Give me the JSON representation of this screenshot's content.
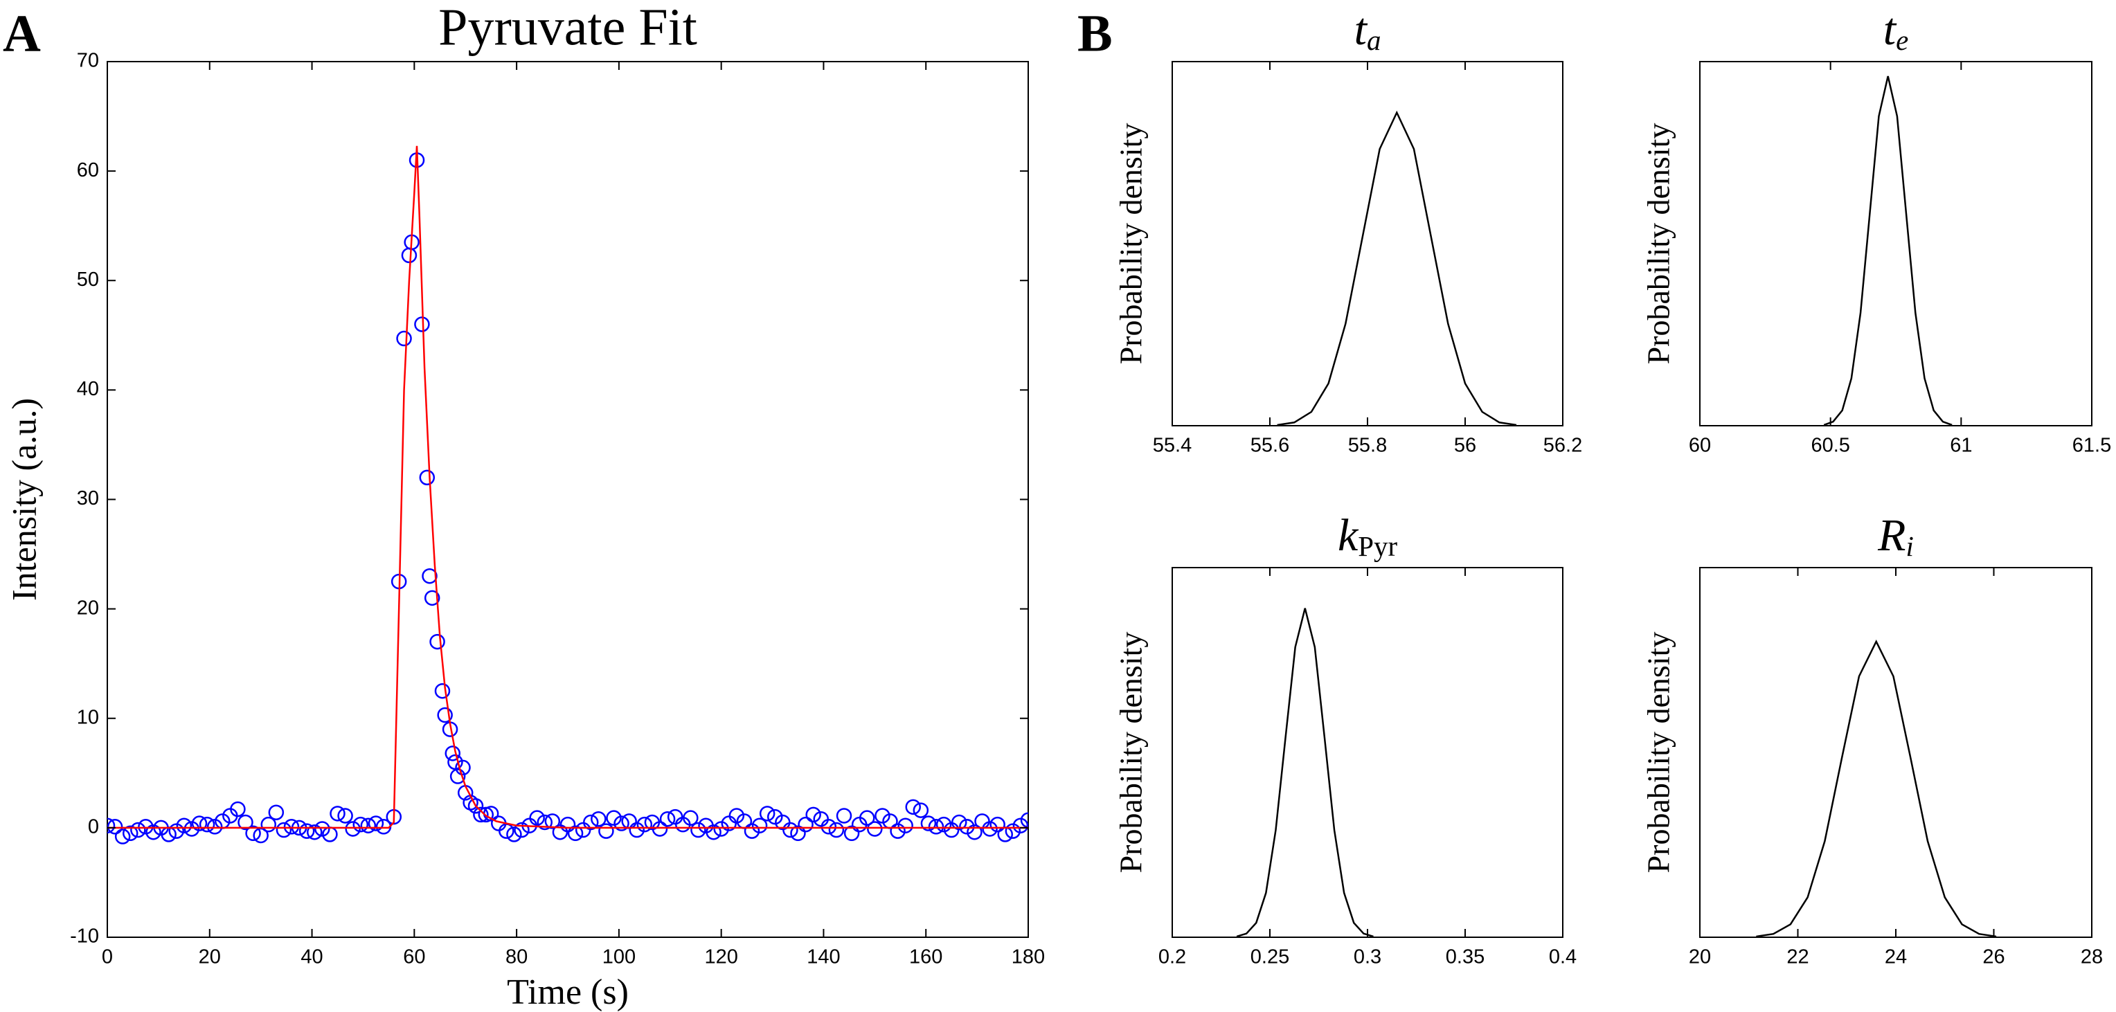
{
  "panel_labels": [
    "A",
    "B"
  ],
  "chart_data": [
    {
      "type": "scatter",
      "title": "Pyruvate Fit",
      "xlabel": "Time (s)",
      "ylabel": "Intensity (a.u.)",
      "xlim": [
        0,
        180
      ],
      "xticks": [
        0,
        20,
        40,
        60,
        80,
        100,
        120,
        140,
        160,
        180
      ],
      "ylim": [
        -10,
        70
      ],
      "yticks": [
        -10,
        0,
        10,
        20,
        30,
        40,
        50,
        60,
        70
      ],
      "series": [
        {
          "type": "scatter",
          "color": "#0000ff",
          "x": [
            0,
            1.5,
            3,
            4.5,
            6,
            7.5,
            9,
            10.5,
            12,
            13.5,
            15,
            16.5,
            18,
            19.5,
            21,
            22.5,
            24,
            25.5,
            27,
            28.5,
            30,
            31.5,
            33,
            34.5,
            36,
            37.5,
            39,
            40.5,
            42,
            43.5,
            45,
            46.5,
            48,
            49.5,
            51,
            52.5,
            54,
            56,
            57,
            58,
            59,
            59.5,
            60.5,
            61.5,
            62.5,
            63,
            63.5,
            64.5,
            65.5,
            66,
            67,
            67.5,
            68,
            68.5,
            69.5,
            70,
            71,
            72,
            73,
            74,
            75,
            76.5,
            78,
            79.5,
            81,
            82.5,
            84,
            85.5,
            87,
            88.5,
            90,
            91.5,
            93,
            94.5,
            96,
            97.5,
            99,
            100.5,
            102,
            103.5,
            105,
            106.5,
            108,
            109.5,
            111,
            112.5,
            114,
            115.5,
            117,
            118.5,
            120,
            121.5,
            123,
            124.5,
            126,
            127.5,
            129,
            130.5,
            132,
            133.5,
            135,
            136.5,
            138,
            139.5,
            141,
            142.5,
            144,
            145.5,
            147,
            148.5,
            150,
            151.5,
            153,
            154.5,
            156,
            157.5,
            159,
            160.5,
            162,
            163.5,
            165,
            166.5,
            168,
            169.5,
            171,
            172.5,
            174,
            175.5,
            177,
            178.5,
            180
          ],
          "values": [
            0.2,
            0.1,
            -0.8,
            -0.5,
            -0.2,
            0.1,
            -0.4,
            0,
            -0.6,
            -0.3,
            0.2,
            -0.1,
            0.4,
            0.3,
            0.1,
            0.6,
            1.1,
            1.7,
            0.5,
            -0.5,
            -0.7,
            0.3,
            1.4,
            -0.2,
            0.1,
            0,
            -0.3,
            -0.4,
            -0.1,
            -0.6,
            1.3,
            1.1,
            -0.1,
            0.3,
            0.2,
            0.4,
            0.1,
            1,
            22.5,
            44.7,
            52.3,
            53.5,
            61,
            46,
            32,
            23,
            21,
            17,
            12.5,
            10.3,
            9,
            6.8,
            6,
            4.7,
            5.5,
            3.2,
            2.3,
            2,
            1.2,
            1.2,
            1.3,
            0.4,
            -0.3,
            -0.6,
            -0.2,
            0.2,
            0.9,
            0.5,
            0.6,
            -0.4,
            0.3,
            -0.5,
            -0.2,
            0.5,
            0.8,
            -0.3,
            0.9,
            0.4,
            0.6,
            -0.2,
            0.3,
            0.5,
            -0.1,
            0.8,
            1.0,
            0.3,
            0.9,
            -0.2,
            0.2,
            -0.4,
            -0.1,
            0.4,
            1.1,
            0.6,
            -0.3,
            0.2,
            1.3,
            1.0,
            0.5,
            -0.2,
            -0.5,
            0.3,
            1.2,
            0.8,
            0.1,
            -0.2,
            1.1,
            -0.5,
            0.3,
            0.9,
            -0.1,
            1.1,
            0.6,
            -0.3,
            0.2,
            1.9,
            1.6,
            0.4,
            0.1,
            0.3,
            -0.2,
            0.5,
            0.1,
            -0.4,
            0.6,
            -0.1,
            0.3,
            -0.6,
            -0.3,
            0.2,
            0.7
          ]
        },
        {
          "type": "line",
          "color": "#ff0000",
          "x": [
            0,
            55,
            56,
            57,
            58,
            59,
            60,
            60.5,
            61,
            62,
            63,
            64,
            65,
            66,
            67,
            68,
            69,
            70,
            72,
            74,
            76,
            80,
            90,
            180
          ],
          "values": [
            0,
            0,
            0.5,
            20,
            40,
            50,
            58,
            62.3,
            56,
            42,
            32,
            24,
            17.5,
            12.8,
            9.5,
            7,
            5.2,
            3.8,
            2,
            1.1,
            0.6,
            0.2,
            0,
            0
          ]
        }
      ]
    },
    {
      "type": "line",
      "title": {
        "base": "t",
        "sub": "a"
      },
      "ylabel": "Probability density",
      "xlim": [
        55.4,
        56.2
      ],
      "xticks": [
        55.4,
        55.6,
        55.8,
        56,
        56.2
      ],
      "ylim": [
        0,
        1
      ],
      "series": [
        {
          "color": "#000000",
          "x": [
            55.615,
            55.65,
            55.685,
            55.72,
            55.755,
            55.79,
            55.825,
            55.86,
            55.895,
            55.93,
            55.965,
            56,
            56.035,
            56.07,
            56.105
          ],
          "values": [
            0.002,
            0.009,
            0.038,
            0.116,
            0.28,
            0.52,
            0.76,
            0.86,
            0.76,
            0.52,
            0.28,
            0.116,
            0.038,
            0.009,
            0.002
          ]
        }
      ]
    },
    {
      "type": "line",
      "title": {
        "base": "t",
        "sub": "e"
      },
      "ylabel": "Probability density",
      "xlim": [
        60,
        61.5
      ],
      "xticks": [
        60,
        60.5,
        61,
        61.5
      ],
      "ylim": [
        0,
        1
      ],
      "series": [
        {
          "color": "#000000",
          "x": [
            60.475,
            60.51,
            60.545,
            60.58,
            60.615,
            60.65,
            60.685,
            60.72,
            60.755,
            60.79,
            60.825,
            60.86,
            60.895,
            60.93,
            60.965
          ],
          "values": [
            0.002,
            0.011,
            0.042,
            0.13,
            0.31,
            0.58,
            0.85,
            0.96,
            0.85,
            0.58,
            0.31,
            0.13,
            0.042,
            0.011,
            0.002
          ]
        }
      ]
    },
    {
      "type": "line",
      "title": {
        "base": "k",
        "sub": "Pyr"
      },
      "ylabel": "Probability density",
      "xlim": [
        0.2,
        0.4
      ],
      "xticks": [
        0.2,
        0.25,
        0.3,
        0.35,
        0.4
      ],
      "ylim": [
        0,
        1
      ],
      "series": [
        {
          "color": "#000000",
          "x": [
            0.233,
            0.238,
            0.243,
            0.248,
            0.253,
            0.258,
            0.263,
            0.268,
            0.273,
            0.278,
            0.283,
            0.288,
            0.293,
            0.298,
            0.303
          ],
          "values": [
            0.002,
            0.01,
            0.039,
            0.12,
            0.29,
            0.54,
            0.785,
            0.89,
            0.785,
            0.54,
            0.29,
            0.12,
            0.039,
            0.01,
            0.002
          ]
        }
      ]
    },
    {
      "type": "line",
      "title": {
        "base": "R",
        "sub": "i"
      },
      "ylabel": "Probability density",
      "xlim": [
        20,
        28
      ],
      "xticks": [
        20,
        22,
        24,
        26,
        28
      ],
      "ylim": [
        0,
        1
      ],
      "series": [
        {
          "color": "#000000",
          "x": [
            21.15,
            21.5,
            21.85,
            22.2,
            22.55,
            22.9,
            23.25,
            23.6,
            23.95,
            24.3,
            24.65,
            25.0,
            25.35,
            25.7,
            26.05
          ],
          "values": [
            0.002,
            0.009,
            0.035,
            0.108,
            0.26,
            0.486,
            0.706,
            0.8,
            0.706,
            0.486,
            0.26,
            0.108,
            0.035,
            0.009,
            0.002
          ]
        }
      ]
    }
  ]
}
